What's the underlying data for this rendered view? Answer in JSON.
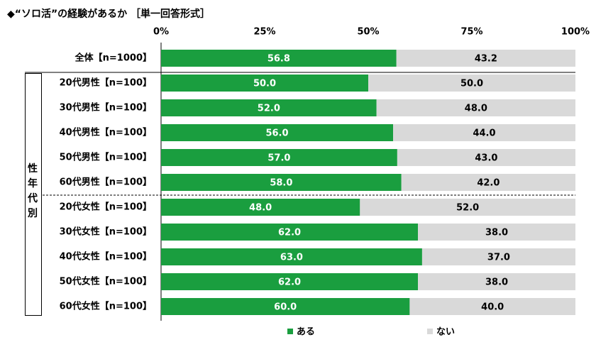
{
  "title": "◆“ソロ活”の経験があるか ［単一回答形式］",
  "side_label": "性年代別",
  "chart_data": {
    "type": "bar",
    "orientation": "horizontal",
    "stacked": true,
    "percent_stacked": true,
    "x_ticks": [
      "0%",
      "25%",
      "50%",
      "75%",
      "100%"
    ],
    "xlim": [
      0,
      100
    ],
    "categories": [
      "全体【n=1000】",
      "20代男性【n=100】",
      "30代男性【n=100】",
      "40代男性【n=100】",
      "50代男性【n=100】",
      "60代男性【n=100】",
      "20代女性【n=100】",
      "30代女性【n=100】",
      "40代女性【n=100】",
      "50代女性【n=100】",
      "60代女性【n=100】"
    ],
    "series": [
      {
        "name": "ある",
        "color": "#1a9e3f",
        "values": [
          56.8,
          50.0,
          52.0,
          56.0,
          57.0,
          58.0,
          48.0,
          62.0,
          63.0,
          62.0,
          60.0
        ],
        "labels": [
          "56.8",
          "50.0",
          "52.0",
          "56.0",
          "57.0",
          "58.0",
          "48.0",
          "62.0",
          "63.0",
          "62.0",
          "60.0"
        ]
      },
      {
        "name": "ない",
        "color": "#d9d9d9",
        "values": [
          43.2,
          50.0,
          48.0,
          44.0,
          43.0,
          42.0,
          52.0,
          38.0,
          37.0,
          38.0,
          40.0
        ],
        "labels": [
          "43.2",
          "50.0",
          "48.0",
          "44.0",
          "43.0",
          "42.0",
          "52.0",
          "38.0",
          "37.0",
          "38.0",
          "40.0"
        ]
      }
    ],
    "legend_position": "bottom"
  }
}
